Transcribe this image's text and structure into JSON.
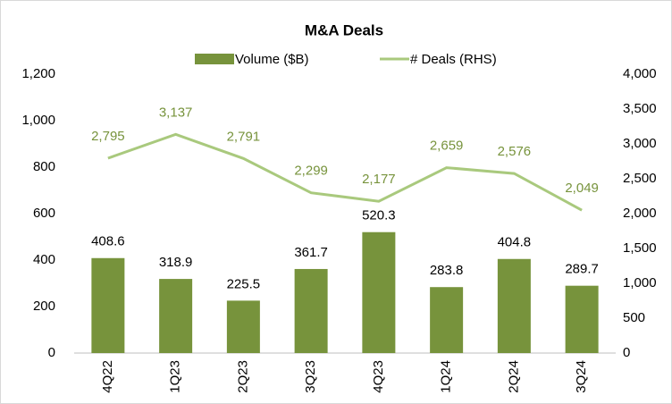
{
  "chart_data": {
    "type": "bar-line",
    "title": "M&A Deals",
    "categories": [
      "4Q22",
      "1Q23",
      "2Q23",
      "3Q23",
      "4Q23",
      "1Q24",
      "2Q24",
      "3Q24"
    ],
    "series": [
      {
        "name": "Volume ($B)",
        "type": "bar",
        "color": "#77933c",
        "axis": "y",
        "values": [
          408.6,
          318.9,
          225.5,
          361.7,
          520.3,
          283.8,
          404.8,
          289.7
        ]
      },
      {
        "name": "# Deals (RHS)",
        "type": "line",
        "color": "#a9c97d",
        "axis": "y2",
        "values": [
          2795,
          3137,
          2791,
          2299,
          2177,
          2659,
          2576,
          2049
        ],
        "value_labels": [
          "2,795",
          "3,137",
          "2,791",
          "2,299",
          "2,177",
          "2,659",
          "2,576",
          "2,049"
        ]
      }
    ],
    "ylim": [
      0,
      1200
    ],
    "yticks": [
      0,
      200,
      400,
      600,
      800,
      {
        "value": 1000,
        "label": "1,000"
      },
      {
        "value": 1200,
        "label": "1,200"
      }
    ],
    "y2lim": [
      0,
      4000
    ],
    "y2ticks": [
      0,
      500,
      {
        "value": 1000,
        "label": "1,000"
      },
      {
        "value": 1500,
        "label": "1,500"
      },
      {
        "value": 2000,
        "label": "2,000"
      },
      {
        "value": 2500,
        "label": "2,500"
      },
      {
        "value": 3000,
        "label": "3,000"
      },
      {
        "value": 3500,
        "label": "3,500"
      },
      {
        "value": 4000,
        "label": "4,000"
      }
    ],
    "legend": "top",
    "grid": false
  }
}
